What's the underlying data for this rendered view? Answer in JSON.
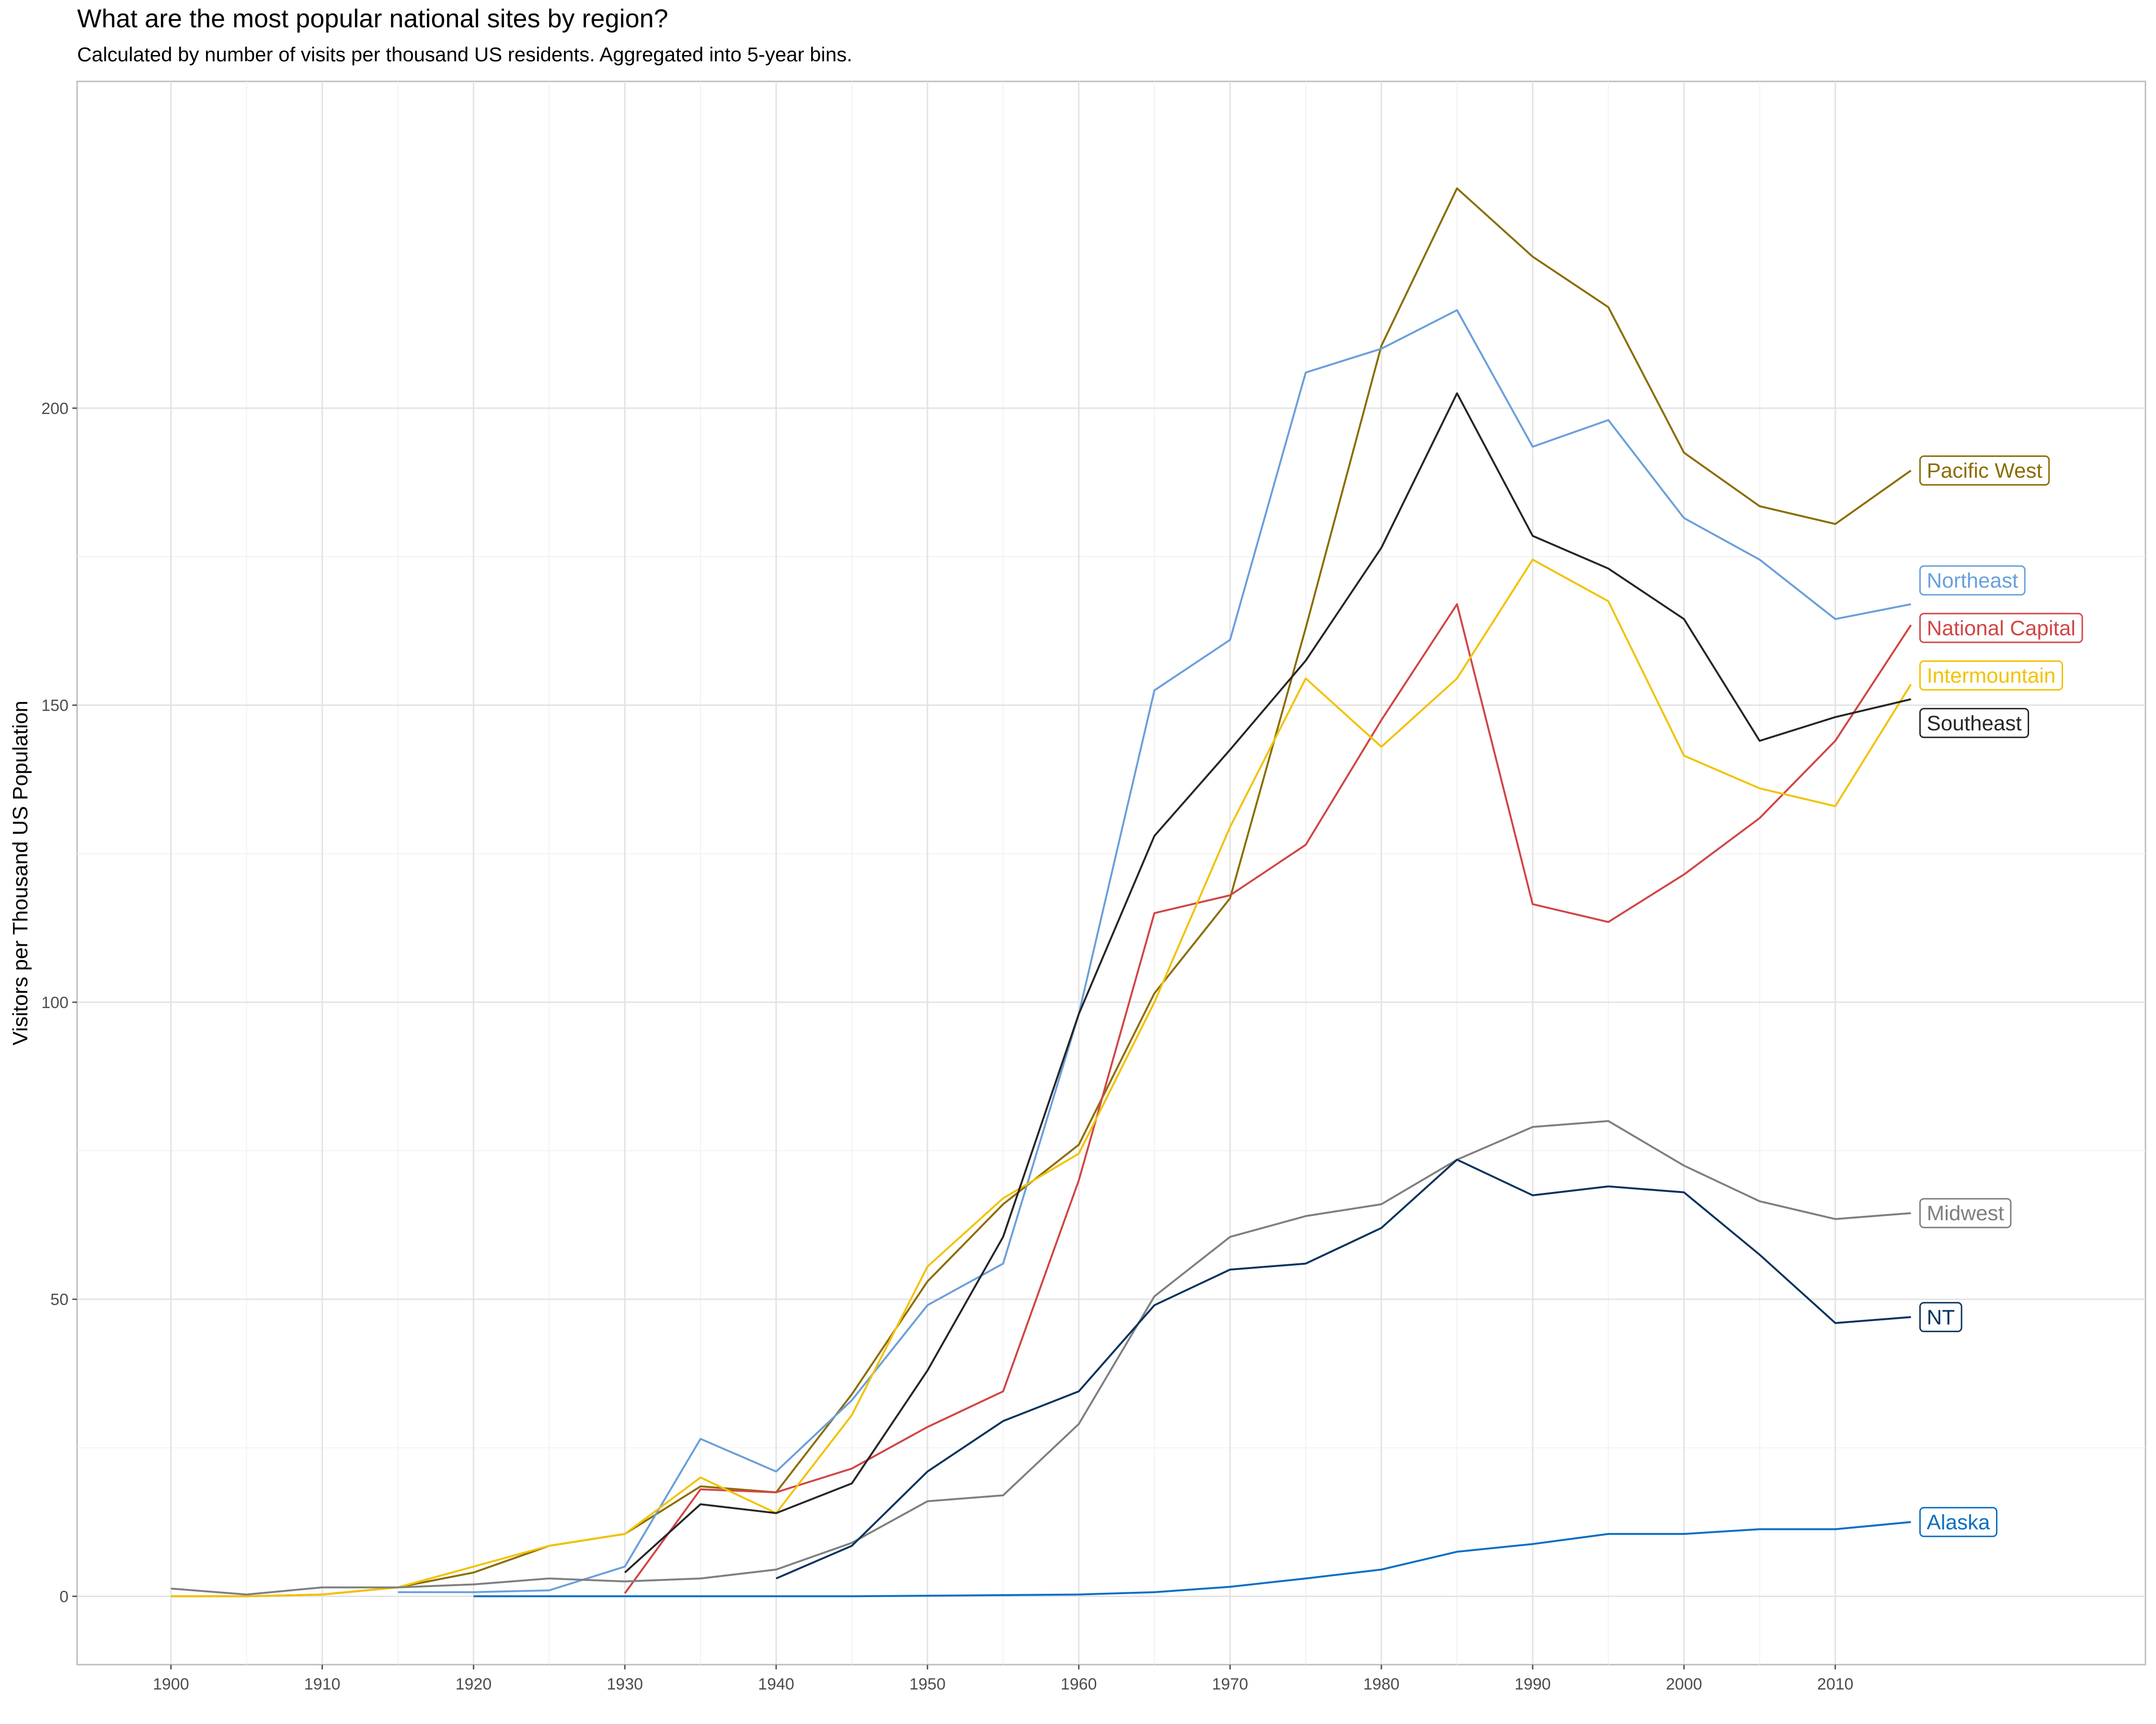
{
  "chart_data": {
    "type": "line",
    "title": "What are the most popular national sites by region?",
    "subtitle": "Calculated by number of visits per thousand US residents. Aggregated into 5-year bins.",
    "xlabel": "",
    "ylabel": "Visitors per Thousand US Population",
    "xlim": [
      1893.8,
      2030.5
    ],
    "ylim": [
      -11.5,
      255
    ],
    "x_ticks": [
      1900,
      1910,
      1920,
      1930,
      1940,
      1950,
      1960,
      1970,
      1980,
      1990,
      2000,
      2010
    ],
    "y_ticks": [
      0,
      50,
      100,
      150,
      200
    ],
    "grid": true,
    "legend": "direct labels at line ends",
    "series": [
      {
        "name": "Pacific West",
        "color": "#8b6d00",
        "label_y": 189.5,
        "x": [
          1900,
          1905,
          1910,
          1915,
          1920,
          1925,
          1930,
          1935,
          1940,
          1945,
          1950,
          1955,
          1960,
          1965,
          1970,
          1975,
          1980,
          1985,
          1990,
          1995,
          2000,
          2005,
          2010,
          2015
        ],
        "y": [
          0,
          0,
          0.3,
          1.5,
          4,
          8.5,
          10.5,
          18.5,
          17.5,
          34,
          53,
          66,
          76,
          101.5,
          117.5,
          163,
          210.5,
          237,
          225.5,
          217,
          192.5,
          183.5,
          180.5,
          189.5
        ]
      },
      {
        "name": "Northeast",
        "color": "#6a9fdb",
        "label_y": 171,
        "x": [
          1915,
          1920,
          1925,
          1930,
          1935,
          1940,
          1945,
          1950,
          1955,
          1960,
          1965,
          1970,
          1975,
          1980,
          1985,
          1990,
          1995,
          2000,
          2005,
          2010,
          2015
        ],
        "y": [
          0.7,
          0.7,
          1,
          5,
          26.5,
          21,
          33,
          49,
          56,
          98,
          152.5,
          161,
          206,
          210,
          216.5,
          193.5,
          198,
          181.5,
          174.5,
          164.5,
          167
        ]
      },
      {
        "name": "National Capital",
        "color": "#d24545",
        "label_y": 163,
        "x": [
          1930,
          1935,
          1940,
          1945,
          1950,
          1955,
          1960,
          1965,
          1970,
          1975,
          1980,
          1985,
          1990,
          1995,
          2000,
          2005,
          2010,
          2015
        ],
        "y": [
          0.5,
          18,
          17.5,
          21.5,
          28.5,
          34.5,
          70,
          115,
          118,
          126.5,
          147.5,
          167,
          116.5,
          113.5,
          121.5,
          131,
          144,
          163.5
        ]
      },
      {
        "name": "Intermountain",
        "color": "#f2c200",
        "label_y": 155,
        "x": [
          1900,
          1905,
          1910,
          1915,
          1920,
          1925,
          1930,
          1935,
          1940,
          1945,
          1950,
          1955,
          1960,
          1965,
          1970,
          1975,
          1980,
          1985,
          1990,
          1995,
          2000,
          2005,
          2010,
          2015
        ],
        "y": [
          0,
          0,
          0.3,
          1.5,
          5,
          8.5,
          10.5,
          20,
          14,
          30.5,
          55.5,
          67,
          74.5,
          100,
          129.5,
          154.5,
          143,
          154.5,
          174.5,
          167.5,
          141.5,
          136,
          133,
          153.5
        ]
      },
      {
        "name": "Southeast",
        "color": "#262626",
        "label_y": 147,
        "x": [
          1930,
          1935,
          1940,
          1945,
          1950,
          1955,
          1960,
          1965,
          1970,
          1975,
          1980,
          1985,
          1990,
          1995,
          2000,
          2005,
          2010,
          2015
        ],
        "y": [
          4,
          15.5,
          14,
          19,
          38,
          60.5,
          98,
          128,
          142.5,
          157.5,
          176.5,
          202.5,
          178.5,
          173,
          164.5,
          144,
          148,
          151
        ]
      },
      {
        "name": "Midwest",
        "color": "#7f7f7f",
        "label_y": 64.5,
        "x": [
          1900,
          1905,
          1910,
          1915,
          1920,
          1925,
          1930,
          1935,
          1940,
          1945,
          1950,
          1955,
          1960,
          1965,
          1970,
          1975,
          1980,
          1985,
          1990,
          1995,
          2000,
          2005,
          2010,
          2015
        ],
        "y": [
          1.3,
          0.3,
          1.5,
          1.5,
          2,
          3,
          2.5,
          3,
          4.5,
          9,
          16,
          17,
          29,
          50.5,
          60.5,
          64,
          66,
          73.5,
          79,
          80,
          72.5,
          66.5,
          63.5,
          64.5
        ]
      },
      {
        "name": "NT",
        "color": "#07335d",
        "label_y": 47,
        "x": [
          1940,
          1945,
          1950,
          1955,
          1960,
          1965,
          1970,
          1975,
          1980,
          1985,
          1990,
          1995,
          2000,
          2005,
          2010,
          2015
        ],
        "y": [
          3,
          8.5,
          21,
          29.5,
          34.5,
          49,
          55,
          56,
          62,
          73.5,
          67.5,
          69,
          68,
          57.5,
          46,
          47
        ]
      },
      {
        "name": "Alaska",
        "color": "#0b6fc4",
        "label_y": 12.5,
        "x": [
          1920,
          1925,
          1930,
          1935,
          1940,
          1945,
          1950,
          1955,
          1960,
          1965,
          1970,
          1975,
          1980,
          1985,
          1990,
          1995,
          2000,
          2005,
          2010,
          2015
        ],
        "y": [
          0,
          0,
          0,
          0,
          0,
          0,
          0.1,
          0.2,
          0.3,
          0.7,
          1.6,
          3,
          4.5,
          7.5,
          8.8,
          10.5,
          10.5,
          11.3,
          11.3,
          12.5
        ]
      }
    ]
  }
}
